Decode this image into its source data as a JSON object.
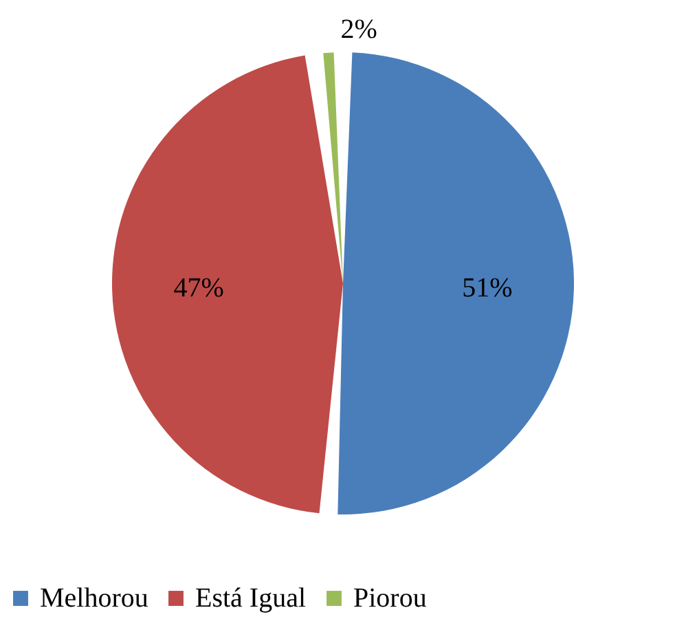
{
  "chart_data": {
    "type": "pie",
    "categories": [
      "Melhorou",
      "Está Igual",
      "Piorou"
    ],
    "values": [
      51,
      47,
      2
    ],
    "colors": [
      "#4a7ebb",
      "#be4b48",
      "#9bbb59"
    ],
    "value_labels": [
      "51%",
      "47%",
      "2%"
    ],
    "legend": "bottom"
  }
}
